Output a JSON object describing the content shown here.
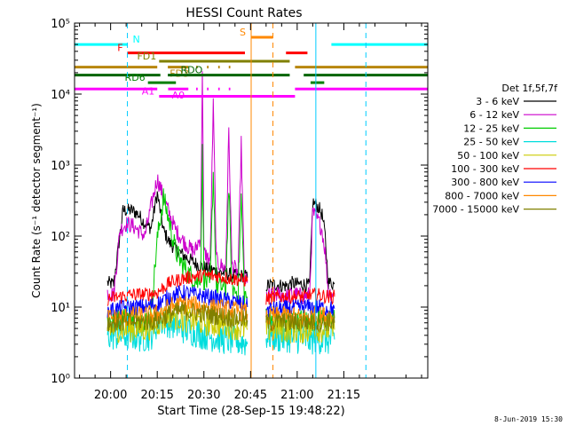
{
  "chart_data": {
    "type": "line",
    "title": "HESSI Count Rates",
    "xlabel": "Start Time (28-Sep-15 19:48:22)",
    "ylabel": "Count Rate (s⁻¹ detector segment⁻¹)",
    "x_unit": "minutes of day",
    "xlim": [
      1188.4,
      1302
    ],
    "ylim": [
      1,
      100000
    ],
    "yscale": "log",
    "x_ticks": [
      {
        "value": 1200,
        "label": "20:00"
      },
      {
        "value": 1215,
        "label": "20:15"
      },
      {
        "value": 1230,
        "label": "20:30"
      },
      {
        "value": 1245,
        "label": "20:45"
      },
      {
        "value": 1260,
        "label": "21:00"
      },
      {
        "value": 1275,
        "label": "21:15"
      }
    ],
    "y_ticks": [
      {
        "value": 1,
        "label": "10⁰"
      },
      {
        "value": 10,
        "label": "10¹"
      },
      {
        "value": 100,
        "label": "10²"
      },
      {
        "value": 1000,
        "label": "10³"
      },
      {
        "value": 10000,
        "label": "10⁴"
      },
      {
        "value": 100000,
        "label": "10⁵"
      }
    ],
    "legend_title": "Det 1f,5f,7f",
    "legend_position": "right",
    "series": [
      {
        "name": "3 - 6 keV",
        "color": "#000000",
        "segments": [
          {
            "x": [
              1199,
              1201,
              1204,
              1207,
              1209,
              1211,
              1213,
              1215,
              1217,
              1219,
              1221,
              1223,
              1225,
              1227,
              1229,
              1231,
              1233,
              1235,
              1237,
              1239,
              1241,
              1243,
              1244
            ],
            "y": [
              22,
              21,
              230,
              230,
              200,
              150,
              130,
              400,
              120,
              80,
              65,
              55,
              48,
              42,
              38,
              35,
              33,
              31,
              30,
              28,
              27,
              28,
              26
            ]
          },
          {
            "x": [
              1250,
              1253,
              1255,
              1257,
              1258,
              1260,
              1262,
              1264,
              1265,
              1266,
              1267,
              1268,
              1269,
              1270,
              1271,
              1272
            ],
            "y": [
              20,
              21,
              20,
              20,
              22,
              21,
              21,
              20,
              300,
              280,
              250,
              200,
              100,
              22,
              22,
              21
            ]
          }
        ]
      },
      {
        "name": "6 - 12 keV",
        "color": "#cc00cc",
        "segments": [
          {
            "x": [
              1199,
              1201,
              1203,
              1205,
              1207,
              1209,
              1211,
              1213,
              1215,
              1217,
              1219,
              1221,
              1223,
              1225,
              1227,
              1229,
              1229.5,
              1230,
              1232,
              1233,
              1234,
              1235,
              1237,
              1238,
              1239,
              1241,
              1242,
              1243,
              1244
            ],
            "y": [
              16,
              15,
              120,
              150,
              140,
              120,
              100,
              260,
              650,
              350,
              200,
              120,
              90,
              70,
              60,
              100,
              25000,
              60,
              45,
              7000,
              45,
              40,
              35,
              3000,
              40,
              30,
              2000,
              25,
              22
            ]
          },
          {
            "x": [
              1250,
              1253,
              1255,
              1257,
              1258,
              1260,
              1262,
              1264,
              1265,
              1266,
              1267,
              1268,
              1269,
              1270,
              1271,
              1272
            ],
            "y": [
              14,
              15,
              15,
              14,
              15,
              15,
              14,
              15,
              220,
              180,
              160,
              120,
              60,
              16,
              16,
              15
            ]
          }
        ]
      },
      {
        "name": "12 - 25 keV",
        "color": "#00cc00",
        "segments": [
          {
            "x": [
              1199,
              1201,
              1203,
              1205,
              1207,
              1209,
              1211,
              1213,
              1215,
              1217,
              1219,
              1221,
              1223,
              1225,
              1227,
              1228,
              1229,
              1229.5,
              1230,
              1232,
              1233,
              1234,
              1235,
              1237,
              1238,
              1239,
              1241,
              1242,
              1243,
              1244
            ],
            "y": [
              7,
              6,
              7,
              8,
              7,
              7,
              6,
              8,
              90,
              350,
              150,
              60,
              40,
              30,
              25,
              22,
              30,
              1500,
              25,
              20,
              800,
              20,
              20,
              18,
              500,
              18,
              16,
              350,
              15,
              14
            ]
          },
          {
            "x": [
              1250,
              1253,
              1255,
              1257,
              1258,
              1260,
              1262,
              1264,
              1266,
              1268,
              1270,
              1272
            ],
            "y": [
              7,
              7,
              6,
              7,
              7,
              6,
              7,
              6,
              7,
              7,
              6,
              7
            ]
          }
        ]
      },
      {
        "name": "25 - 50 keV",
        "color": "#00dddd",
        "segments": [
          {
            "x": [
              1199,
              1201,
              1203,
              1205,
              1207,
              1209,
              1211,
              1213,
              1215,
              1217,
              1219,
              1221,
              1223,
              1225,
              1227,
              1229,
              1231,
              1233,
              1235,
              1237,
              1239,
              1241,
              1243,
              1244
            ],
            "y": [
              4,
              4,
              4,
              4,
              4,
              3.8,
              3.8,
              4,
              6,
              6.5,
              6,
              5.5,
              5,
              4.8,
              4.5,
              4.2,
              4,
              3.8,
              3.6,
              3.5,
              3.4,
              3.3,
              3.2,
              3
            ]
          },
          {
            "x": [
              1250,
              1253,
              1255,
              1257,
              1258,
              1260,
              1262,
              1264,
              1266,
              1268,
              1270,
              1272
            ],
            "y": [
              4,
              3.8,
              3.6,
              3.8,
              3.5,
              3.6,
              3.5,
              3.4,
              3.6,
              3.5,
              3.4,
              3.5
            ]
          }
        ]
      },
      {
        "name": "50 - 100 keV",
        "color": "#cccc00",
        "segments": [
          {
            "x": [
              1199,
              1203,
              1207,
              1211,
              1215,
              1219,
              1223,
              1227,
              1231,
              1235,
              1239,
              1243,
              1244
            ],
            "y": [
              5,
              5,
              5,
              5,
              6,
              8,
              7,
              6.5,
              6,
              5.8,
              5.5,
              5,
              4.8
            ]
          },
          {
            "x": [
              1250,
              1254,
              1258,
              1262,
              1266,
              1270,
              1272
            ],
            "y": [
              5,
              5,
              4.8,
              4.8,
              5,
              4.9,
              4.8
            ]
          }
        ]
      },
      {
        "name": "100 - 300 keV",
        "color": "#ff0000",
        "segments": [
          {
            "x": [
              1199,
              1203,
              1207,
              1211,
              1215,
              1219,
              1223,
              1227,
              1231,
              1235,
              1239,
              1243,
              1244
            ],
            "y": [
              13,
              14,
              15,
              15,
              16,
              22,
              25,
              27,
              28,
              27,
              25,
              24,
              23
            ]
          },
          {
            "x": [
              1250,
              1254,
              1258,
              1262,
              1266,
              1270,
              1272
            ],
            "y": [
              13,
              14,
              14,
              14,
              15,
              14,
              14
            ]
          }
        ]
      },
      {
        "name": "300 - 800 keV",
        "color": "#0000ff",
        "segments": [
          {
            "x": [
              1199,
              1203,
              1207,
              1211,
              1215,
              1219,
              1223,
              1227,
              1231,
              1235,
              1239,
              1243,
              1244
            ],
            "y": [
              9,
              9.5,
              10,
              10,
              11,
              14,
              16,
              15,
              14,
              13,
              12,
              11,
              10
            ]
          },
          {
            "x": [
              1250,
              1254,
              1258,
              1262,
              1266,
              1270,
              1272
            ],
            "y": [
              9,
              9.5,
              9.5,
              10,
              10,
              9.5,
              9.5
            ]
          }
        ]
      },
      {
        "name": "800 - 7000 keV",
        "color": "#ff8800",
        "segments": [
          {
            "x": [
              1199,
              1203,
              1207,
              1211,
              1215,
              1219,
              1223,
              1227,
              1231,
              1235,
              1239,
              1243,
              1244
            ],
            "y": [
              7,
              7,
              7.5,
              7.5,
              8,
              10,
              11,
              10.5,
              10,
              9.5,
              9,
              8.5,
              8
            ]
          },
          {
            "x": [
              1250,
              1254,
              1258,
              1262,
              1266,
              1270,
              1272
            ],
            "y": [
              7,
              7.5,
              7.5,
              7,
              7.5,
              7.5,
              7
            ]
          }
        ]
      },
      {
        "name": "7000 - 15000 keV",
        "color": "#808000",
        "segments": [
          {
            "x": [
              1199,
              1203,
              1207,
              1211,
              1215,
              1219,
              1223,
              1227,
              1231,
              1235,
              1239,
              1243,
              1244
            ],
            "y": [
              6,
              6,
              6.2,
              6.2,
              6.5,
              8,
              9,
              8.5,
              8,
              7.5,
              7,
              6.8,
              6.5
            ]
          },
          {
            "x": [
              1250,
              1254,
              1258,
              1262,
              1266,
              1270,
              1272
            ],
            "y": [
              6,
              6.2,
              6,
              6.2,
              6,
              6.2,
              6
            ]
          }
        ]
      }
    ],
    "flag_bars": [
      {
        "label": "N",
        "color": "#00ffff",
        "y": 50000,
        "intervals": [
          [
            1188.4,
            1205.4
          ],
          [
            1271,
            1302
          ]
        ]
      },
      {
        "label": "S",
        "color": "#ff8800",
        "y": 63000,
        "intervals": [
          [
            1245.2,
            1252.2
          ]
        ]
      },
      {
        "label": "F",
        "color": "#ff0000",
        "y": 38000,
        "intervals": [
          [
            1205.4,
            1243.2
          ],
          [
            1256.4,
            1263.3
          ]
        ]
      },
      {
        "label": "FD1",
        "color": "#808000",
        "y": 29000,
        "intervals": [
          [
            1215.6,
            1257.6
          ]
        ]
      },
      {
        "label": "FD3",
        "color": "#b8860b",
        "y": 24000,
        "intervals": [
          [
            1188.4,
            1215
          ],
          [
            1218.4,
            1225
          ],
          [
            1227.5,
            1228
          ],
          [
            1231,
            1231.5
          ],
          [
            1234.6,
            1235.1
          ],
          [
            1238,
            1238.5
          ],
          [
            1259.3,
            1302
          ]
        ]
      },
      {
        "label": "RDO",
        "color": "#006400",
        "y": 18500,
        "intervals": [
          [
            1188.4,
            1216
          ],
          [
            1218.4,
            1257.6
          ],
          [
            1262.1,
            1302
          ]
        ]
      },
      {
        "label": "RD6",
        "color": "#008000",
        "y": 14500,
        "intervals": [
          [
            1212,
            1221
          ],
          [
            1264.3,
            1268.7
          ]
        ]
      },
      {
        "label": "A0",
        "color": "#ff00ff",
        "y": 11800,
        "intervals": [
          [
            1188.4,
            1215
          ],
          [
            1218.5,
            1225
          ],
          [
            1227.5,
            1228
          ],
          [
            1231,
            1231.5
          ],
          [
            1234.6,
            1235.1
          ],
          [
            1238,
            1238.5
          ],
          [
            1259.3,
            1302
          ]
        ]
      },
      {
        "label": "A1",
        "color": "#ff00ff",
        "y": 9300,
        "intervals": [
          [
            1215.6,
            1259.3
          ]
        ]
      }
    ],
    "vertical_markers": [
      {
        "x": 1205.4,
        "color": "#00ccff",
        "style": "dashed"
      },
      {
        "x": 1245.2,
        "color": "#ff8800",
        "style": "solid"
      },
      {
        "x": 1252.2,
        "color": "#ff8800",
        "style": "dashed"
      },
      {
        "x": 1266.0,
        "color": "#00ccff",
        "style": "solid"
      },
      {
        "x": 1282.1,
        "color": "#00ccff",
        "style": "dashed"
      }
    ],
    "footer_date": "8-Jun-2019 15:30"
  }
}
